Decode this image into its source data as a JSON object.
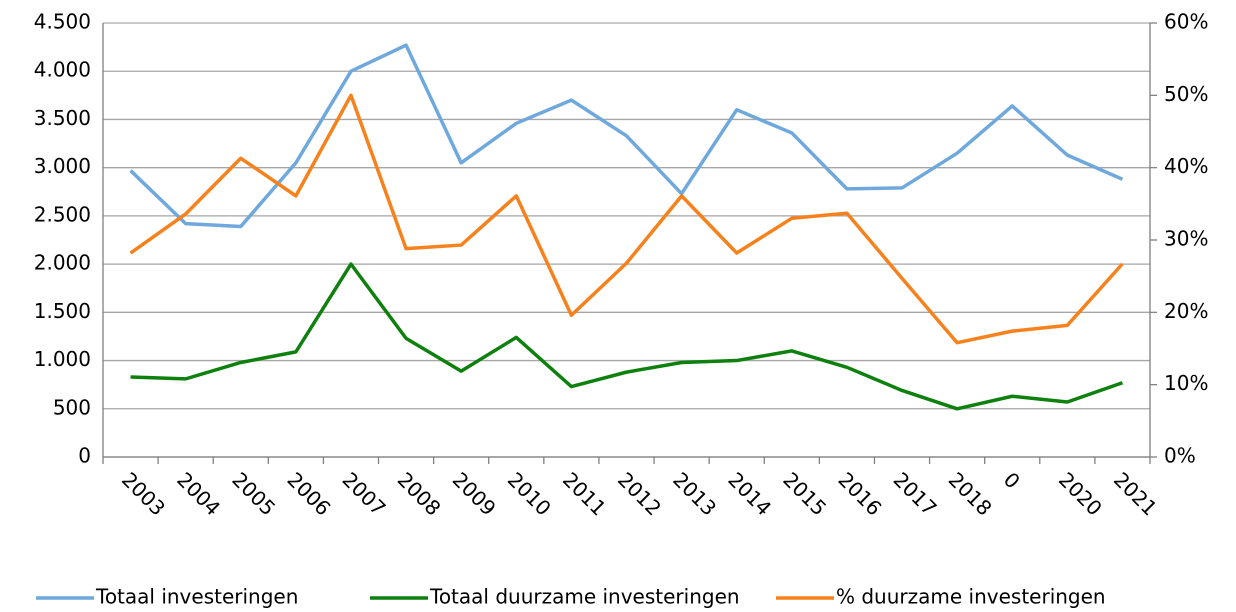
{
  "chart_data": {
    "type": "line",
    "categories": [
      "2003",
      "2004",
      "2005",
      "2006",
      "2007",
      "2008",
      "2009",
      "2010",
      "2011",
      "2012",
      "2013",
      "2014",
      "2015",
      "2016",
      "2017",
      "2018",
      "0",
      "2020",
      "2021"
    ],
    "series": [
      {
        "name": "Totaal investeringen",
        "color": "#6fa8dc",
        "values": [
          2970,
          2420,
          2390,
          3050,
          4000,
          4270,
          3050,
          3460,
          3700,
          3330,
          2730,
          3600,
          3360,
          2780,
          2790,
          3150,
          3640,
          3130,
          2880
        ]
      },
      {
        "name": "Totaal duurzame investeringen",
        "color": "#0e800e",
        "values": [
          830,
          810,
          980,
          1090,
          2000,
          1230,
          890,
          1240,
          730,
          880,
          980,
          1000,
          1100,
          930,
          690,
          500,
          630,
          570,
          770
        ]
      },
      {
        "name": "% duurzame investeringen",
        "color": "#f7821d",
        "axis": "y2",
        "values": [
          28.2,
          33.6,
          41.3,
          36.1,
          50.0,
          28.8,
          29.3,
          36.1,
          19.6,
          26.8,
          36.1,
          28.2,
          33.0,
          33.7,
          24.7,
          15.8,
          17.4,
          18.2,
          26.7
        ]
      }
    ],
    "ylim": [
      0,
      4500
    ],
    "yticks": [
      0,
      500,
      {
        "value": 1000,
        "label": "1.000"
      },
      {
        "value": 1500,
        "label": "1.500"
      },
      {
        "value": 2000,
        "label": "2.000"
      },
      {
        "value": 2500,
        "label": "2.500"
      },
      {
        "value": 3000,
        "label": "3.000"
      },
      {
        "value": 3500,
        "label": "3.500"
      },
      {
        "value": 4000,
        "label": "4.000"
      },
      {
        "value": 4500,
        "label": "4.500"
      }
    ],
    "y2lim": [
      0,
      60
    ],
    "y2ticks": [
      {
        "value": 0,
        "label": "0%"
      },
      {
        "value": 10,
        "label": "10%"
      },
      {
        "value": 20,
        "label": "20%"
      },
      {
        "value": 30,
        "label": "30%"
      },
      {
        "value": 40,
        "label": "40%"
      },
      {
        "value": 50,
        "label": "50%"
      },
      {
        "value": 60,
        "label": "60%"
      }
    ],
    "grid": true,
    "legend": "bottom"
  }
}
